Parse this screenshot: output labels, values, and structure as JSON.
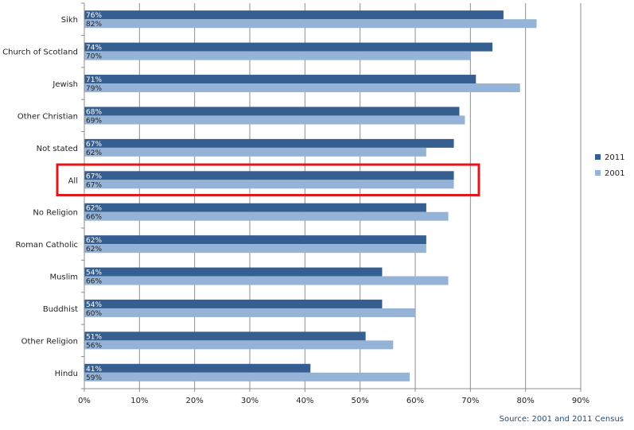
{
  "chart_data": {
    "type": "bar",
    "orientation": "horizontal",
    "categories": [
      "Sikh",
      "Church of Scotland",
      "Jewish",
      "Other Christian",
      "Not stated",
      "All",
      "No Religion",
      "Roman Catholic",
      "Muslim",
      "Buddhist",
      "Other Religion",
      "Hindu"
    ],
    "series": [
      {
        "name": "2011",
        "color": "#365f91",
        "values": [
          76,
          74,
          71,
          68,
          67,
          67,
          62,
          62,
          54,
          54,
          51,
          41
        ],
        "labels": [
          "76%",
          "74%",
          "71%",
          "68%",
          "67%",
          "67%",
          "62%",
          "62%",
          "54%",
          "54%",
          "51%",
          "41%"
        ]
      },
      {
        "name": "2001",
        "color": "#95b3d7",
        "values": [
          82,
          70,
          79,
          69,
          62,
          67,
          66,
          62,
          66,
          60,
          56,
          59
        ],
        "labels": [
          "82%",
          "70%",
          "79%",
          "69%",
          "62%",
          "67%",
          "66%",
          "62%",
          "66%",
          "60%",
          "56%",
          "59%"
        ]
      }
    ],
    "xlim": [
      0,
      90
    ],
    "x_ticks": [
      "0%",
      "10%",
      "20%",
      "30%",
      "40%",
      "50%",
      "60%",
      "70%",
      "80%",
      "90%"
    ],
    "grid": "vertical",
    "legend_position": "right",
    "highlighted_category": "All",
    "highlight_color": "#e0181b",
    "source": "Source: 2001 and 2011 Census",
    "source_color": "#1f4e79"
  }
}
